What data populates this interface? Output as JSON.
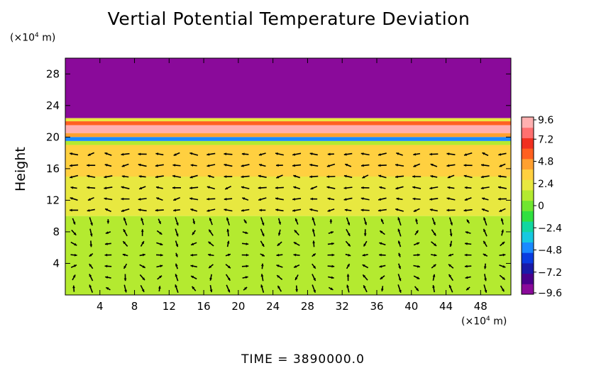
{
  "chart_data": {
    "type": "heatmap",
    "title": "Vertial Potential Temperature Deviation",
    "ylabel": "Height",
    "x_unit_prefix": "(×10",
    "y_unit_prefix": "(×10",
    "unit_exponent": "4",
    "unit_suffix": " m)",
    "x_ticks": [
      "4",
      "8",
      "12",
      "16",
      "20",
      "24",
      "28",
      "32",
      "36",
      "40",
      "44",
      "48"
    ],
    "y_ticks": [
      "4",
      "8",
      "12",
      "16",
      "20",
      "24",
      "28"
    ],
    "xlim": [
      0,
      51.5
    ],
    "ylim": [
      0,
      30
    ],
    "colorbar": {
      "ticks": [
        "9.6",
        "7.2",
        "4.8",
        "2.4",
        "0",
        "−2.4",
        "−4.8",
        "−7.2",
        "−9.6"
      ],
      "range": [
        -9.6,
        9.6
      ],
      "colors": [
        "#8a0a9a",
        "#4a008c",
        "#1a1aa8",
        "#0a3ce0",
        "#1a8aff",
        "#16c8e0",
        "#12d6a0",
        "#30e040",
        "#70e630",
        "#b4ea30",
        "#e8e840",
        "#ffd040",
        "#ffa030",
        "#ff6020",
        "#f03020",
        "#ff7070",
        "#ffb0b0"
      ]
    },
    "bands": [
      {
        "y_from": 22.4,
        "y_to": 30,
        "value": -9.6
      },
      {
        "y_from": 22.0,
        "y_to": 22.4,
        "value": 2.4
      },
      {
        "y_from": 21.5,
        "y_to": 22.0,
        "value": 6.0
      },
      {
        "y_from": 20.5,
        "y_to": 21.5,
        "value": 9.0
      },
      {
        "y_from": 20.0,
        "y_to": 20.5,
        "value": 4.8
      },
      {
        "y_from": 19.5,
        "y_to": 20.0,
        "value": -4.0
      },
      {
        "y_from": 19.0,
        "y_to": 19.5,
        "value": 1.2
      },
      {
        "y_from": 15.0,
        "y_to": 19.0,
        "value": 3.0
      },
      {
        "y_from": 10.0,
        "y_to": 15.0,
        "value": 1.8
      },
      {
        "y_from": 0,
        "y_to": 10.0,
        "value": 0.6
      }
    ],
    "legend_position": "right"
  },
  "time_label": "TIME  =  3890000.0",
  "colors": {
    "background": "#ffffff",
    "axis": "#000000",
    "arrow": "#000000"
  }
}
